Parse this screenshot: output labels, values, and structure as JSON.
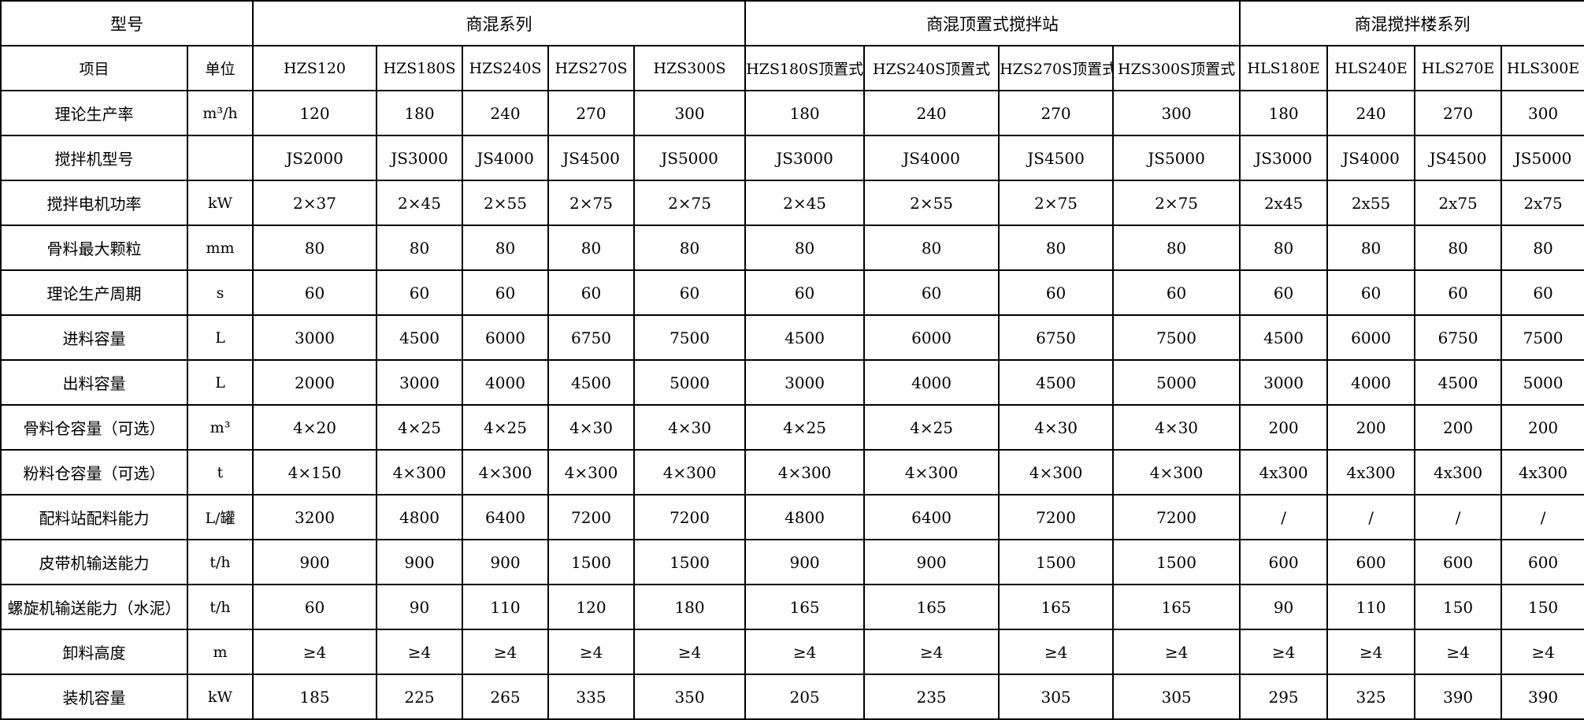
{
  "chart_data": {
    "type": "table",
    "title": "",
    "group_headers": [
      {
        "label": "型号",
        "span": 2
      },
      {
        "label": "商混系列",
        "span": 5
      },
      {
        "label": "商混顶置式搅拌站",
        "span": 4
      },
      {
        "label": "商混搅拌楼系列",
        "span": 4
      }
    ],
    "columns": [
      "项目",
      "单位",
      "HZS120",
      "HZS180S",
      "HZS240S",
      "HZS270S",
      "HZS300S",
      "HZS180S顶置式",
      "HZS240S顶置式",
      "HZS270S顶置式",
      "HZS300S顶置式",
      "HLS180E",
      "HLS240E",
      "HLS270E",
      "HLS300E"
    ],
    "rows": [
      {
        "label": "理论生产率",
        "unit": "m³/h",
        "values": [
          "120",
          "180",
          "240",
          "270",
          "300",
          "180",
          "240",
          "270",
          "300",
          "180",
          "240",
          "270",
          "300"
        ]
      },
      {
        "label": "搅拌机型号",
        "unit": "",
        "values": [
          "JS2000",
          "JS3000",
          "JS4000",
          "JS4500",
          "JS5000",
          "JS3000",
          "JS4000",
          "JS4500",
          "JS5000",
          "JS3000",
          "JS4000",
          "JS4500",
          "JS5000"
        ]
      },
      {
        "label": "搅拌电机功率",
        "unit": "kW",
        "values": [
          "2×37",
          "2×45",
          "2×55",
          "2×75",
          "2×75",
          "2×45",
          "2×55",
          "2×75",
          "2×75",
          "2x45",
          "2x55",
          "2x75",
          "2x75"
        ]
      },
      {
        "label": "骨料最大颗粒",
        "unit": "mm",
        "values": [
          "80",
          "80",
          "80",
          "80",
          "80",
          "80",
          "80",
          "80",
          "80",
          "80",
          "80",
          "80",
          "80"
        ]
      },
      {
        "label": "理论生产周期",
        "unit": "s",
        "values": [
          "60",
          "60",
          "60",
          "60",
          "60",
          "60",
          "60",
          "60",
          "60",
          "60",
          "60",
          "60",
          "60"
        ]
      },
      {
        "label": "进料容量",
        "unit": "L",
        "values": [
          "3000",
          "4500",
          "6000",
          "6750",
          "7500",
          "4500",
          "6000",
          "6750",
          "7500",
          "4500",
          "6000",
          "6750",
          "7500"
        ]
      },
      {
        "label": "出料容量",
        "unit": "L",
        "values": [
          "2000",
          "3000",
          "4000",
          "4500",
          "5000",
          "3000",
          "4000",
          "4500",
          "5000",
          "3000",
          "4000",
          "4500",
          "5000"
        ]
      },
      {
        "label": "骨料仓容量（可选）",
        "unit": "m³",
        "values": [
          "4×20",
          "4×25",
          "4×25",
          "4×30",
          "4×30",
          "4×25",
          "4×25",
          "4×30",
          "4×30",
          "200",
          "200",
          "200",
          "200"
        ]
      },
      {
        "label": "粉料仓容量（可选）",
        "unit": "t",
        "values": [
          "4×150",
          "4×300",
          "4×300",
          "4×300",
          "4×300",
          "4×300",
          "4×300",
          "4×300",
          "4×300",
          "4x300",
          "4x300",
          "4x300",
          "4x300"
        ]
      },
      {
        "label": "配料站配料能力",
        "unit": "L/罐",
        "values": [
          "3200",
          "4800",
          "6400",
          "7200",
          "7200",
          "4800",
          "6400",
          "7200",
          "7200",
          "/",
          "/",
          "/",
          "/"
        ]
      },
      {
        "label": "皮带机输送能力",
        "unit": "t/h",
        "values": [
          "900",
          "900",
          "900",
          "1500",
          "1500",
          "900",
          "900",
          "1500",
          "1500",
          "600",
          "600",
          "600",
          "600"
        ]
      },
      {
        "label": "螺旋机输送能力（水泥）",
        "unit": "t/h",
        "values": [
          "60",
          "90",
          "110",
          "120",
          "180",
          "165",
          "165",
          "165",
          "165",
          "90",
          "110",
          "150",
          "150"
        ]
      },
      {
        "label": "卸料高度",
        "unit": "m",
        "values": [
          "≥4",
          "≥4",
          "≥4",
          "≥4",
          "≥4",
          "≥4",
          "≥4",
          "≥4",
          "≥4",
          "≥4",
          "≥4",
          "≥4",
          "≥4"
        ]
      },
      {
        "label": "装机容量",
        "unit": "kW",
        "values": [
          "185",
          "225",
          "265",
          "335",
          "350",
          "205",
          "235",
          "305",
          "305",
          "295",
          "325",
          "390",
          "390"
        ]
      }
    ]
  }
}
